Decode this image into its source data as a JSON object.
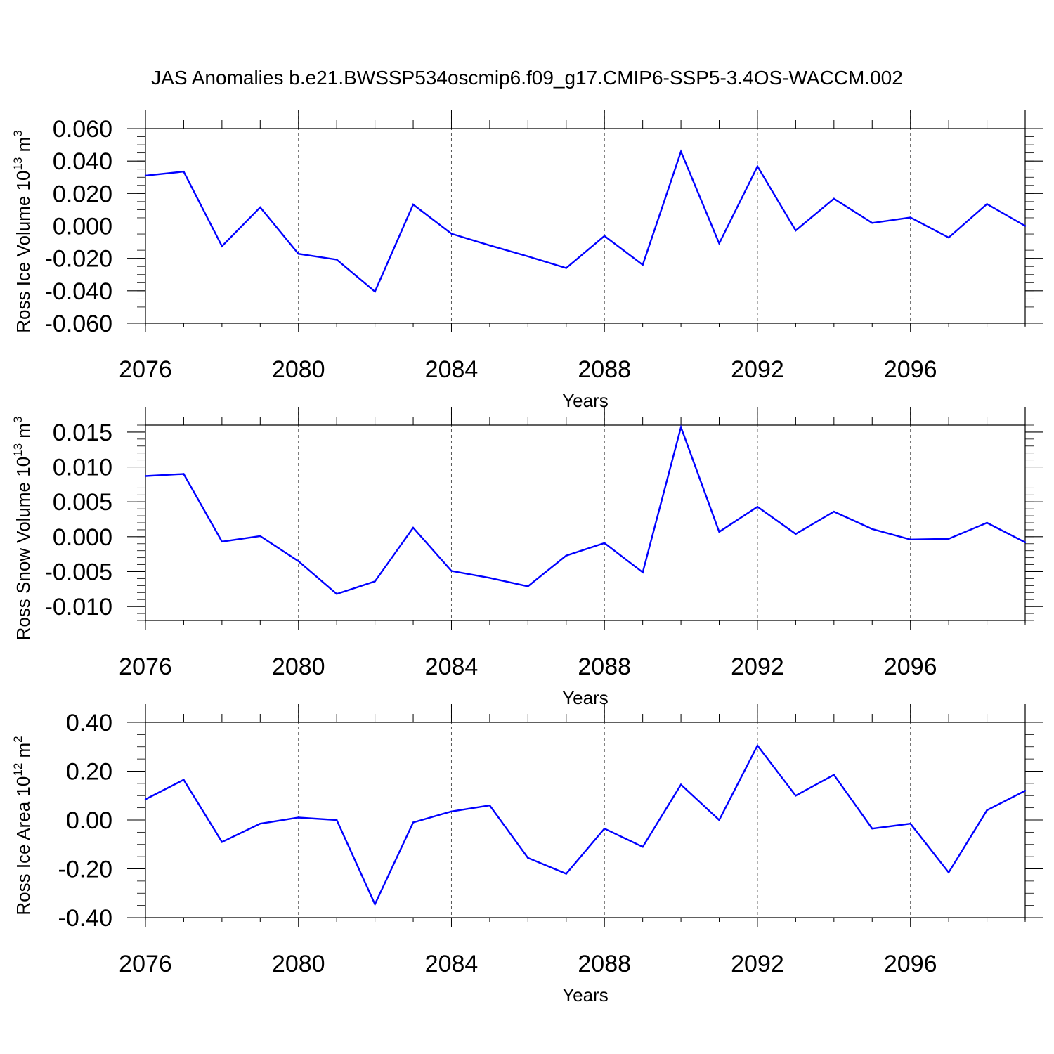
{
  "title": "JAS Anomalies b.e21.BWSSP534oscmip6.f09_g17.CMIP6-SSP5-3.4OS-WACCM.002",
  "colors": {
    "line": "#0000ff",
    "axis": "#000000",
    "grid": "#555555"
  },
  "chart_data": [
    {
      "type": "line",
      "xlabel": "Years",
      "ylabel_text": "Ross Ice Volume 10",
      "ylabel_exp": "13",
      "ylabel_unit": " m",
      "ylabel_unit_exp": "3",
      "xlim": [
        2076,
        2099
      ],
      "ylim": [
        -0.06,
        0.06
      ],
      "x_ticks": [
        2076,
        2080,
        2084,
        2088,
        2092,
        2096
      ],
      "x_tick_labels": [
        "2076",
        "2080",
        "2084",
        "2088",
        "2092",
        "2096"
      ],
      "y_ticks": [
        0.06,
        0.04,
        0.02,
        0.0,
        -0.02,
        -0.04,
        -0.06
      ],
      "y_tick_labels": [
        "0.060",
        "0.040",
        "0.020",
        "0.000",
        "-0.020",
        "-0.040",
        "-0.060"
      ],
      "x": [
        2076,
        2077,
        2078,
        2079,
        2080,
        2081,
        2082,
        2083,
        2084,
        2085,
        2086,
        2087,
        2088,
        2089,
        2090,
        2091,
        2092,
        2093,
        2094,
        2095,
        2096,
        2097,
        2098,
        2099
      ],
      "values": [
        0.031,
        0.0335,
        -0.0125,
        0.0115,
        -0.0172,
        -0.0208,
        -0.0405,
        0.0132,
        -0.0048,
        -0.012,
        -0.0188,
        -0.026,
        -0.0062,
        -0.024,
        0.0458,
        -0.0108,
        0.0367,
        -0.0028,
        0.0168,
        0.0018,
        0.0052,
        -0.0072,
        0.0135,
        0.0
      ]
    },
    {
      "type": "line",
      "xlabel": "Years",
      "ylabel_text": "Ross Snow Volume 10",
      "ylabel_exp": "13",
      "ylabel_unit": " m",
      "ylabel_unit_exp": "3",
      "xlim": [
        2076,
        2099
      ],
      "ylim": [
        -0.012,
        0.016
      ],
      "x_ticks": [
        2076,
        2080,
        2084,
        2088,
        2092,
        2096
      ],
      "x_tick_labels": [
        "2076",
        "2080",
        "2084",
        "2088",
        "2092",
        "2096"
      ],
      "y_ticks": [
        0.015,
        0.01,
        0.005,
        0.0,
        -0.005,
        -0.01
      ],
      "y_tick_labels": [
        "0.015",
        "0.010",
        "0.005",
        "0.000",
        "-0.005",
        "-0.010"
      ],
      "x": [
        2076,
        2077,
        2078,
        2079,
        2080,
        2081,
        2082,
        2083,
        2084,
        2085,
        2086,
        2087,
        2088,
        2089,
        2090,
        2091,
        2092,
        2093,
        2094,
        2095,
        2096,
        2097,
        2098,
        2099
      ],
      "values": [
        0.0087,
        0.009,
        -0.0007,
        0.0001,
        -0.0035,
        -0.0082,
        -0.0064,
        0.0013,
        -0.0049,
        -0.0059,
        -0.0071,
        -0.0027,
        -0.0009,
        -0.0051,
        0.0157,
        0.0007,
        0.0043,
        0.0004,
        0.0036,
        0.0011,
        -0.0004,
        -0.0003,
        0.002,
        -0.0008
      ]
    },
    {
      "type": "line",
      "xlabel": "Years",
      "ylabel_text": "Ross Ice Area 10",
      "ylabel_exp": "12",
      "ylabel_unit": " m",
      "ylabel_unit_exp": "2",
      "xlim": [
        2076,
        2099
      ],
      "ylim": [
        -0.4,
        0.4
      ],
      "x_ticks": [
        2076,
        2080,
        2084,
        2088,
        2092,
        2096
      ],
      "x_tick_labels": [
        "2076",
        "2080",
        "2084",
        "2088",
        "2092",
        "2096"
      ],
      "y_ticks": [
        0.4,
        0.2,
        0.0,
        -0.2,
        -0.4
      ],
      "y_tick_labels": [
        "0.40",
        "0.20",
        "0.00",
        "-0.20",
        "-0.40"
      ],
      "x": [
        2076,
        2077,
        2078,
        2079,
        2080,
        2081,
        2082,
        2083,
        2084,
        2085,
        2086,
        2087,
        2088,
        2089,
        2090,
        2091,
        2092,
        2093,
        2094,
        2095,
        2096,
        2097,
        2098,
        2099
      ],
      "values": [
        0.085,
        0.165,
        -0.09,
        -0.015,
        0.01,
        0.0,
        -0.345,
        -0.01,
        0.035,
        0.06,
        -0.155,
        -0.22,
        -0.035,
        -0.11,
        0.145,
        0.0,
        0.305,
        0.1,
        0.185,
        -0.035,
        -0.015,
        -0.215,
        0.04,
        0.12
      ]
    }
  ]
}
